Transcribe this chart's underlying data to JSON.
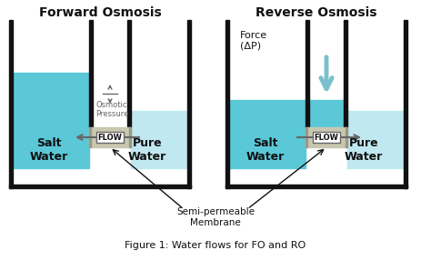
{
  "title_fo": "Forward Osmosis",
  "title_ro": "Reverse Osmosis",
  "caption": "Figure 1: Water flows for FO and RO",
  "membrane_label": "Semi-permeable\nMembrane",
  "salt_water_label": "Salt\nWater",
  "pure_water_label": "Pure\nWater",
  "flow_label": "FLOW",
  "osmotic_pressure_label": "Osmotic\nPressure",
  "force_label": "Force\n(ΔP)",
  "bg_color": "#ffffff",
  "water_dark": "#5bc8d8",
  "water_light": "#c0e8f0",
  "membrane_color": "#c8c8b0",
  "membrane_line": "#999988",
  "box_color": "#111111",
  "arrow_fill": "#7abfcc",
  "arrow_edge": "#6aaabb",
  "flow_box_color": "#dddddd",
  "osmotic_color": "#666666",
  "text_dark": "#111111",
  "text_white": "#ffffff",
  "figsize": [
    4.74,
    2.86
  ],
  "dpi": 100
}
